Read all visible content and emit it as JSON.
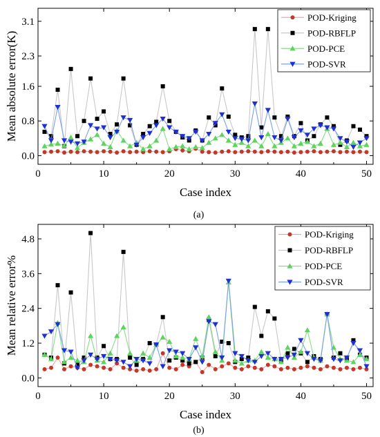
{
  "chart_data": [
    {
      "type": "line",
      "caption": "(a)",
      "xlabel": "Case index",
      "ylabel": "Mean absolute error(K)",
      "xlim": [
        0,
        51
      ],
      "ylim": [
        -0.2,
        3.4
      ],
      "xticks": [
        0,
        10,
        20,
        30,
        40,
        50
      ],
      "yticks": [
        0.0,
        0.8,
        1.6,
        2.3,
        3.1
      ],
      "ytick_labels": [
        "0.0",
        "0.8",
        "1.6",
        "2.3",
        "3.1"
      ],
      "legend_position": "top-right",
      "x": [
        1,
        2,
        3,
        4,
        5,
        6,
        7,
        8,
        9,
        10,
        11,
        12,
        13,
        14,
        15,
        16,
        17,
        18,
        19,
        20,
        21,
        22,
        23,
        24,
        25,
        26,
        27,
        28,
        29,
        30,
        31,
        32,
        33,
        34,
        35,
        36,
        37,
        38,
        39,
        40,
        41,
        42,
        43,
        44,
        45,
        46,
        47,
        48,
        49,
        50
      ],
      "series": [
        {
          "name": "POD-Kriging",
          "color": "#c0392b",
          "marker": "circle",
          "values": [
            0.08,
            0.09,
            0.1,
            0.07,
            0.09,
            0.08,
            0.1,
            0.09,
            0.08,
            0.1,
            0.09,
            0.07,
            0.1,
            0.08,
            0.09,
            0.08,
            0.1,
            0.09,
            0.08,
            0.1,
            0.15,
            0.12,
            0.1,
            0.16,
            0.09,
            0.08,
            0.07,
            0.09,
            0.1,
            0.08,
            0.09,
            0.1,
            0.09,
            0.08,
            0.1,
            0.09,
            0.08,
            0.09,
            0.07,
            0.08,
            0.09,
            0.1,
            0.08,
            0.09,
            0.1,
            0.08,
            0.09,
            0.08,
            0.09,
            0.08
          ]
        },
        {
          "name": "POD-RBFLP",
          "color": "#000000",
          "marker": "square",
          "values": [
            0.55,
            0.45,
            1.52,
            0.22,
            2.0,
            0.45,
            0.8,
            1.78,
            0.85,
            1.02,
            0.5,
            0.72,
            1.78,
            0.7,
            0.25,
            0.5,
            0.68,
            0.78,
            1.6,
            0.8,
            0.55,
            0.42,
            0.35,
            0.58,
            0.35,
            0.88,
            0.7,
            1.55,
            0.9,
            0.48,
            0.42,
            0.45,
            2.92,
            0.65,
            2.92,
            0.88,
            0.45,
            0.9,
            0.45,
            0.75,
            0.35,
            0.45,
            0.72,
            0.88,
            0.68,
            0.25,
            0.35,
            0.68,
            0.6,
            0.45
          ]
        },
        {
          "name": "POD-PCE",
          "color": "#5fd35f",
          "marker": "triangle-up",
          "values": [
            0.22,
            0.26,
            0.28,
            0.23,
            0.42,
            0.18,
            0.3,
            0.38,
            0.48,
            0.28,
            0.2,
            0.58,
            0.35,
            0.22,
            0.3,
            0.15,
            0.22,
            0.35,
            0.62,
            0.15,
            0.2,
            0.22,
            0.15,
            0.2,
            0.18,
            0.3,
            0.4,
            0.48,
            0.35,
            0.25,
            0.3,
            0.22,
            0.35,
            0.22,
            0.5,
            0.22,
            0.3,
            0.4,
            0.22,
            0.28,
            0.32,
            0.22,
            0.28,
            0.62,
            0.25,
            0.3,
            0.2,
            0.3,
            0.22,
            0.25
          ]
        },
        {
          "name": "POD-SVR",
          "color": "#1f2fd0",
          "marker": "triangle-down",
          "values": [
            0.68,
            0.35,
            1.12,
            0.35,
            0.32,
            0.28,
            0.32,
            0.7,
            0.62,
            0.65,
            0.42,
            0.55,
            0.88,
            0.82,
            0.25,
            0.42,
            0.52,
            0.7,
            0.85,
            0.65,
            0.55,
            0.45,
            0.4,
            0.55,
            0.35,
            0.5,
            0.75,
            0.95,
            0.55,
            0.4,
            0.38,
            0.35,
            1.2,
            0.42,
            1.05,
            0.42,
            0.35,
            0.85,
            0.42,
            0.58,
            0.48,
            0.62,
            0.7,
            0.65,
            0.62,
            0.4,
            0.32,
            0.2,
            0.3,
            0.4
          ]
        }
      ]
    },
    {
      "type": "line",
      "caption": "(b)",
      "xlabel": "Case index",
      "ylabel": "Mean relative error%",
      "xlim": [
        0,
        51
      ],
      "ylim": [
        -0.3,
        5.3
      ],
      "xticks": [
        0,
        10,
        20,
        30,
        40,
        50
      ],
      "yticks": [
        0.0,
        1.2,
        2.4,
        3.6,
        4.8
      ],
      "ytick_labels": [
        "0.0",
        "1.2",
        "2.4",
        "3.6",
        "4.8"
      ],
      "legend_position": "top-right",
      "x": [
        1,
        2,
        3,
        4,
        5,
        6,
        7,
        8,
        9,
        10,
        11,
        12,
        13,
        14,
        15,
        16,
        17,
        18,
        19,
        20,
        21,
        22,
        23,
        24,
        25,
        26,
        27,
        28,
        29,
        30,
        31,
        32,
        33,
        34,
        35,
        36,
        37,
        38,
        39,
        40,
        41,
        42,
        43,
        44,
        45,
        46,
        47,
        48,
        49,
        50
      ],
      "series": [
        {
          "name": "POD-Kriging",
          "color": "#c0392b",
          "marker": "circle",
          "values": [
            0.3,
            0.35,
            0.7,
            0.3,
            0.4,
            0.35,
            0.3,
            0.45,
            0.4,
            0.35,
            0.3,
            0.5,
            0.35,
            0.3,
            0.25,
            0.3,
            0.25,
            0.3,
            0.85,
            0.35,
            0.3,
            0.45,
            0.4,
            0.55,
            0.2,
            0.45,
            0.3,
            0.4,
            0.5,
            0.35,
            0.3,
            0.4,
            0.35,
            0.3,
            0.45,
            0.4,
            0.3,
            0.35,
            0.3,
            0.35,
            0.4,
            0.35,
            0.3,
            0.4,
            0.35,
            0.3,
            0.35,
            0.3,
            0.35,
            0.3
          ]
        },
        {
          "name": "POD-RBFLP",
          "color": "#000000",
          "marker": "square",
          "values": [
            0.8,
            0.7,
            3.2,
            0.5,
            2.95,
            0.45,
            0.7,
            5.0,
            0.7,
            1.1,
            0.65,
            0.65,
            4.35,
            0.7,
            0.45,
            0.65,
            1.2,
            1.15,
            2.1,
            0.6,
            0.7,
            0.6,
            0.5,
            0.55,
            0.7,
            2.0,
            0.75,
            1.25,
            1.2,
            0.55,
            0.65,
            0.7,
            2.45,
            1.45,
            2.3,
            2.05,
            0.6,
            0.85,
            1.0,
            0.85,
            0.55,
            0.75,
            0.65,
            2.2,
            0.7,
            0.85,
            0.65,
            1.3,
            0.8,
            0.7
          ]
        },
        {
          "name": "POD-PCE",
          "color": "#5fd35f",
          "marker": "triangle-up",
          "values": [
            0.8,
            0.65,
            1.9,
            0.55,
            0.7,
            0.6,
            0.55,
            1.45,
            0.6,
            0.55,
            0.85,
            1.45,
            1.75,
            0.85,
            0.6,
            0.85,
            0.7,
            1.15,
            1.4,
            1.25,
            0.75,
            0.7,
            0.65,
            1.35,
            0.75,
            2.1,
            0.9,
            0.6,
            3.3,
            0.6,
            0.5,
            0.6,
            0.6,
            0.9,
            0.7,
            0.65,
            0.55,
            1.05,
            0.7,
            0.9,
            1.65,
            0.7,
            0.6,
            2.2,
            1.05,
            0.65,
            0.6,
            0.55,
            0.8,
            0.65
          ]
        },
        {
          "name": "POD-SVR",
          "color": "#1f2fd0",
          "marker": "triangle-down",
          "values": [
            1.45,
            1.6,
            1.85,
            0.95,
            0.9,
            0.35,
            0.6,
            0.8,
            0.65,
            0.75,
            0.65,
            0.6,
            0.55,
            0.4,
            0.65,
            0.6,
            0.5,
            1.15,
            0.4,
            0.95,
            0.9,
            0.85,
            0.65,
            1.05,
            0.55,
            1.95,
            1.85,
            0.7,
            3.35,
            0.85,
            0.75,
            0.6,
            0.55,
            0.75,
            0.85,
            0.65,
            0.65,
            0.7,
            0.8,
            1.3,
            0.85,
            0.65,
            0.6,
            2.2,
            0.65,
            0.6,
            0.7,
            1.2,
            0.95,
            0.4
          ]
        }
      ]
    }
  ]
}
